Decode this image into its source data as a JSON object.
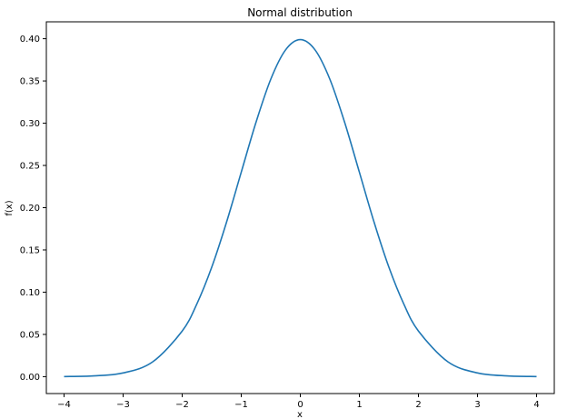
{
  "chart_data": {
    "type": "line",
    "title": "Normal distribution",
    "xlabel": "x",
    "ylabel": "f(x)",
    "xlim": [
      -4.3,
      4.3
    ],
    "ylim": [
      -0.02,
      0.42
    ],
    "x_ticks": [
      -4,
      -3,
      -2,
      -1,
      0,
      1,
      2,
      3,
      4
    ],
    "x_tick_labels": [
      "−4",
      "−3",
      "−2",
      "−1",
      "0",
      "1",
      "2",
      "3",
      "4"
    ],
    "y_ticks": [
      0.0,
      0.05,
      0.1,
      0.15,
      0.2,
      0.25,
      0.3,
      0.35,
      0.4
    ],
    "y_tick_labels": [
      "0.00",
      "0.05",
      "0.10",
      "0.15",
      "0.20",
      "0.25",
      "0.30",
      "0.35",
      "0.40"
    ],
    "grid": false,
    "series": [
      {
        "color": "#1f77b4",
        "x": [
          -4.0,
          -3.5,
          -3.0,
          -2.5,
          -2.0,
          -1.75,
          -1.5,
          -1.25,
          -1.0,
          -0.75,
          -0.5,
          -0.25,
          0.0,
          0.25,
          0.5,
          0.75,
          1.0,
          1.25,
          1.5,
          1.75,
          2.0,
          2.5,
          3.0,
          3.5,
          4.0
        ],
        "y": [
          0.0001,
          0.0009,
          0.0044,
          0.0175,
          0.054,
          0.0863,
          0.1295,
          0.1826,
          0.242,
          0.3011,
          0.3521,
          0.3867,
          0.3989,
          0.3867,
          0.3521,
          0.3011,
          0.242,
          0.1826,
          0.1295,
          0.0863,
          0.054,
          0.0175,
          0.0044,
          0.0009,
          0.0001
        ]
      }
    ]
  }
}
